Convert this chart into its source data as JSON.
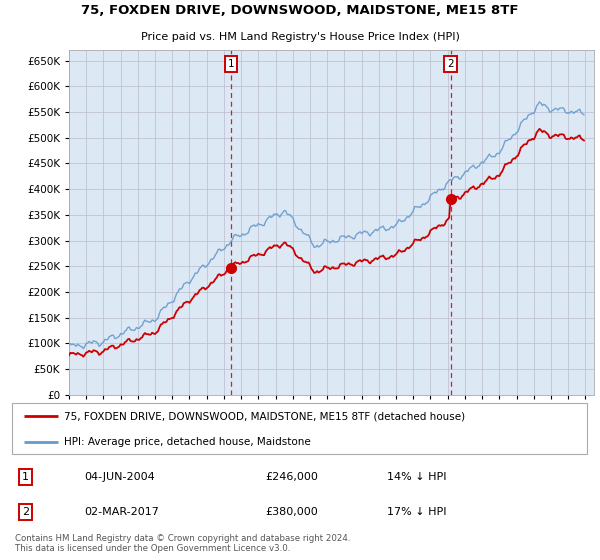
{
  "title": "75, FOXDEN DRIVE, DOWNSWOOD, MAIDSTONE, ME15 8TF",
  "subtitle": "Price paid vs. HM Land Registry's House Price Index (HPI)",
  "legend_line1": "75, FOXDEN DRIVE, DOWNSWOOD, MAIDSTONE, ME15 8TF (detached house)",
  "legend_line2": "HPI: Average price, detached house, Maidstone",
  "annotation1_date": "04-JUN-2004",
  "annotation1_price": "£246,000",
  "annotation1_hpi": "14% ↓ HPI",
  "annotation2_date": "02-MAR-2017",
  "annotation2_price": "£380,000",
  "annotation2_hpi": "17% ↓ HPI",
  "footer": "Contains HM Land Registry data © Crown copyright and database right 2024.\nThis data is licensed under the Open Government Licence v3.0.",
  "ylim_min": 0,
  "ylim_max": 670000,
  "yticks": [
    0,
    50000,
    100000,
    150000,
    200000,
    250000,
    300000,
    350000,
    400000,
    450000,
    500000,
    550000,
    600000,
    650000
  ],
  "bg_color": "#dce9f5",
  "hpi_line_color": "#6699cc",
  "price_line_color": "#cc0000",
  "grid_color": "#bbbbcc",
  "sale1_year": 2004.417,
  "sale1_price": 246000,
  "sale2_year": 2017.167,
  "sale2_price": 380000
}
